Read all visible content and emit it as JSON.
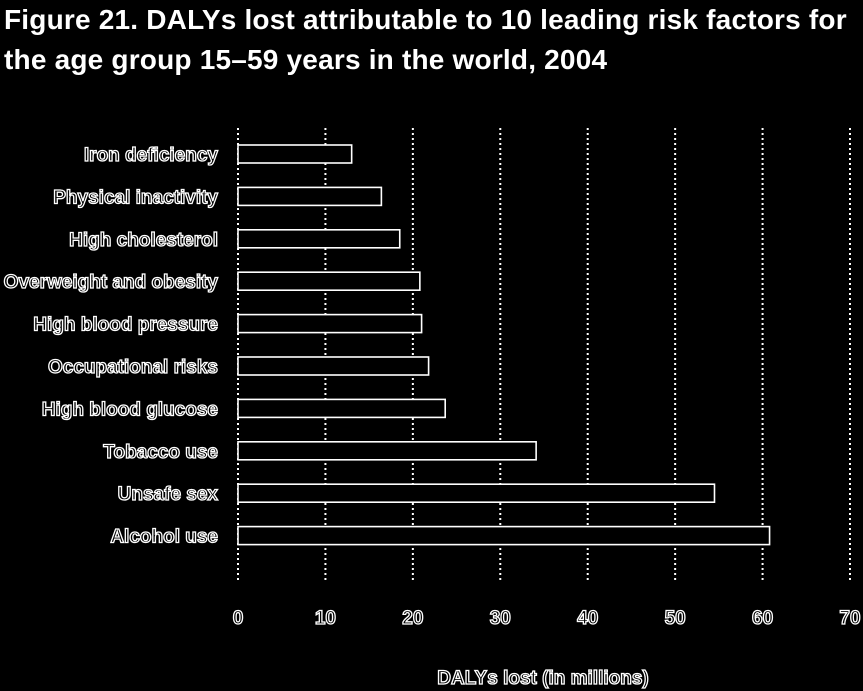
{
  "chart_data": {
    "type": "bar",
    "orientation": "horizontal",
    "title_lines": [
      "Figure 21. DALYs lost attributable to 10 leading risk factors for",
      "the age group 15–59 years in the world, 2004"
    ],
    "xlabel": "DALYs lost (in millions)",
    "ylabel": "",
    "categories": [
      "Iron deficiency",
      "Physical inactivity",
      "High cholesterol",
      "Overweight and obesity",
      "High blood pressure",
      "Occupational risks",
      "High blood glucose",
      "Tobacco use",
      "Unsafe sex",
      "Alcohol use"
    ],
    "values": [
      13,
      16.4,
      18.5,
      20.8,
      21,
      21.8,
      23.7,
      34.1,
      54.5,
      60.8
    ],
    "xlim": [
      0,
      70
    ],
    "xticks": [
      "0",
      "10",
      "20",
      "30",
      "40",
      "50",
      "60",
      "70"
    ],
    "grid": true,
    "legend": "none",
    "colors": {
      "background": "#000000",
      "foreground": "#ffffff"
    }
  }
}
